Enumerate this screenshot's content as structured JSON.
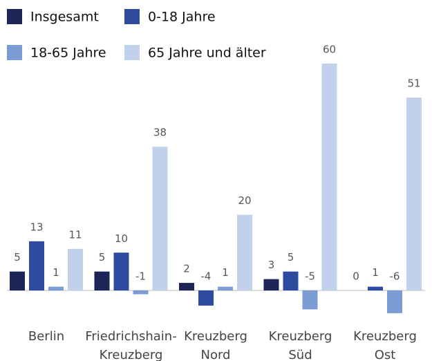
{
  "chart_data": {
    "type": "bar",
    "categories": [
      [
        "Berlin"
      ],
      [
        "Friedrichshain-",
        "Kreuzberg"
      ],
      [
        "Kreuzberg",
        "Nord"
      ],
      [
        "Kreuzberg",
        "Süd"
      ],
      [
        "Kreuzberg",
        "Ost"
      ]
    ],
    "series": [
      {
        "name": "Insgesamt",
        "color": "#1b2557",
        "values": [
          5,
          5,
          2,
          3,
          0
        ]
      },
      {
        "name": "0-18 Jahre",
        "color": "#2f4ba0",
        "values": [
          13,
          10,
          -4,
          5,
          1
        ]
      },
      {
        "name": "18-65 Jahre",
        "color": "#7b9bd5",
        "values": [
          1,
          -1,
          1,
          -5,
          -6
        ]
      },
      {
        "name": "65 Jahre und älter",
        "color": "#c1d0eb",
        "values": [
          11,
          38,
          20,
          60,
          51
        ]
      }
    ],
    "ylim": [
      -10,
      65
    ]
  }
}
